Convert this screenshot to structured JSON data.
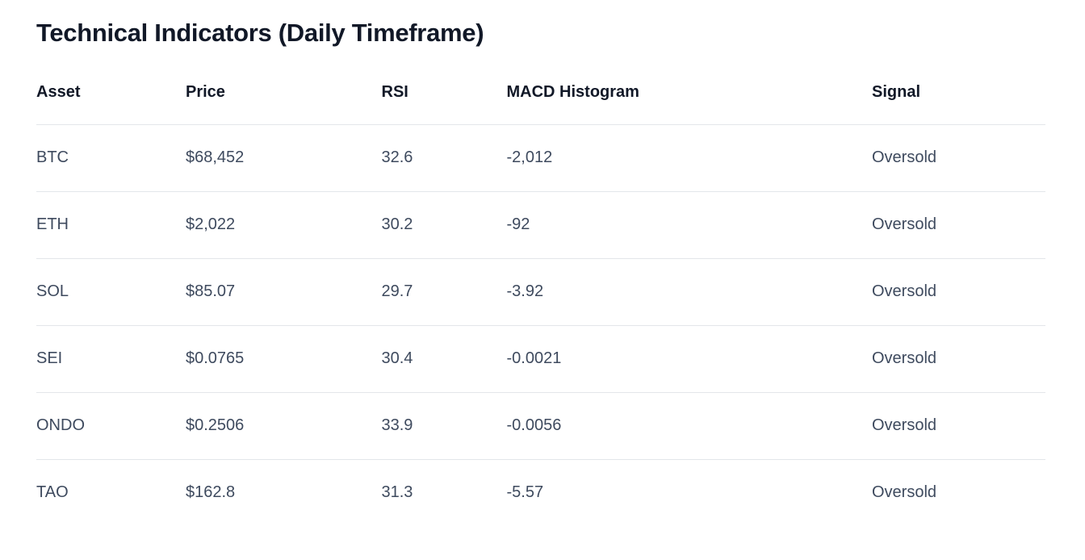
{
  "page": {
    "title": "Technical Indicators (Daily Timeframe)"
  },
  "table": {
    "columns": [
      "Asset",
      "Price",
      "RSI",
      "MACD Histogram",
      "Signal"
    ],
    "rows": [
      {
        "asset": "BTC",
        "price": "$68,452",
        "rsi": "32.6",
        "macd": "-2,012",
        "signal": "Oversold"
      },
      {
        "asset": "ETH",
        "price": "$2,022",
        "rsi": "30.2",
        "macd": "-92",
        "signal": "Oversold"
      },
      {
        "asset": "SOL",
        "price": "$85.07",
        "rsi": "29.7",
        "macd": "-3.92",
        "signal": "Oversold"
      },
      {
        "asset": "SEI",
        "price": "$0.0765",
        "rsi": "30.4",
        "macd": "-0.0021",
        "signal": "Oversold"
      },
      {
        "asset": "ONDO",
        "price": "$0.2506",
        "rsi": "33.9",
        "macd": "-0.0056",
        "signal": "Oversold"
      },
      {
        "asset": "TAO",
        "price": "$162.8",
        "rsi": "31.3",
        "macd": "-5.57",
        "signal": "Oversold"
      }
    ]
  },
  "colors": {
    "background": "#ffffff",
    "title_text": "#111827",
    "header_text": "#111827",
    "body_text": "#3e4a5e",
    "divider": "#e3e6ea"
  },
  "chart_data": {
    "type": "table",
    "title": "Technical Indicators (Daily Timeframe)",
    "columns": [
      "Asset",
      "Price",
      "RSI",
      "MACD Histogram",
      "Signal"
    ],
    "rows": [
      [
        "BTC",
        "$68,452",
        32.6,
        -2012,
        "Oversold"
      ],
      [
        "ETH",
        "$2,022",
        30.2,
        -92,
        "Oversold"
      ],
      [
        "SOL",
        "$85.07",
        29.7,
        -3.92,
        "Oversold"
      ],
      [
        "SEI",
        "$0.0765",
        30.4,
        -0.0021,
        "Oversold"
      ],
      [
        "ONDO",
        "$0.2506",
        33.9,
        -0.0056,
        "Oversold"
      ],
      [
        "TAO",
        "$162.8",
        31.3,
        -5.57,
        "Oversold"
      ]
    ]
  }
}
